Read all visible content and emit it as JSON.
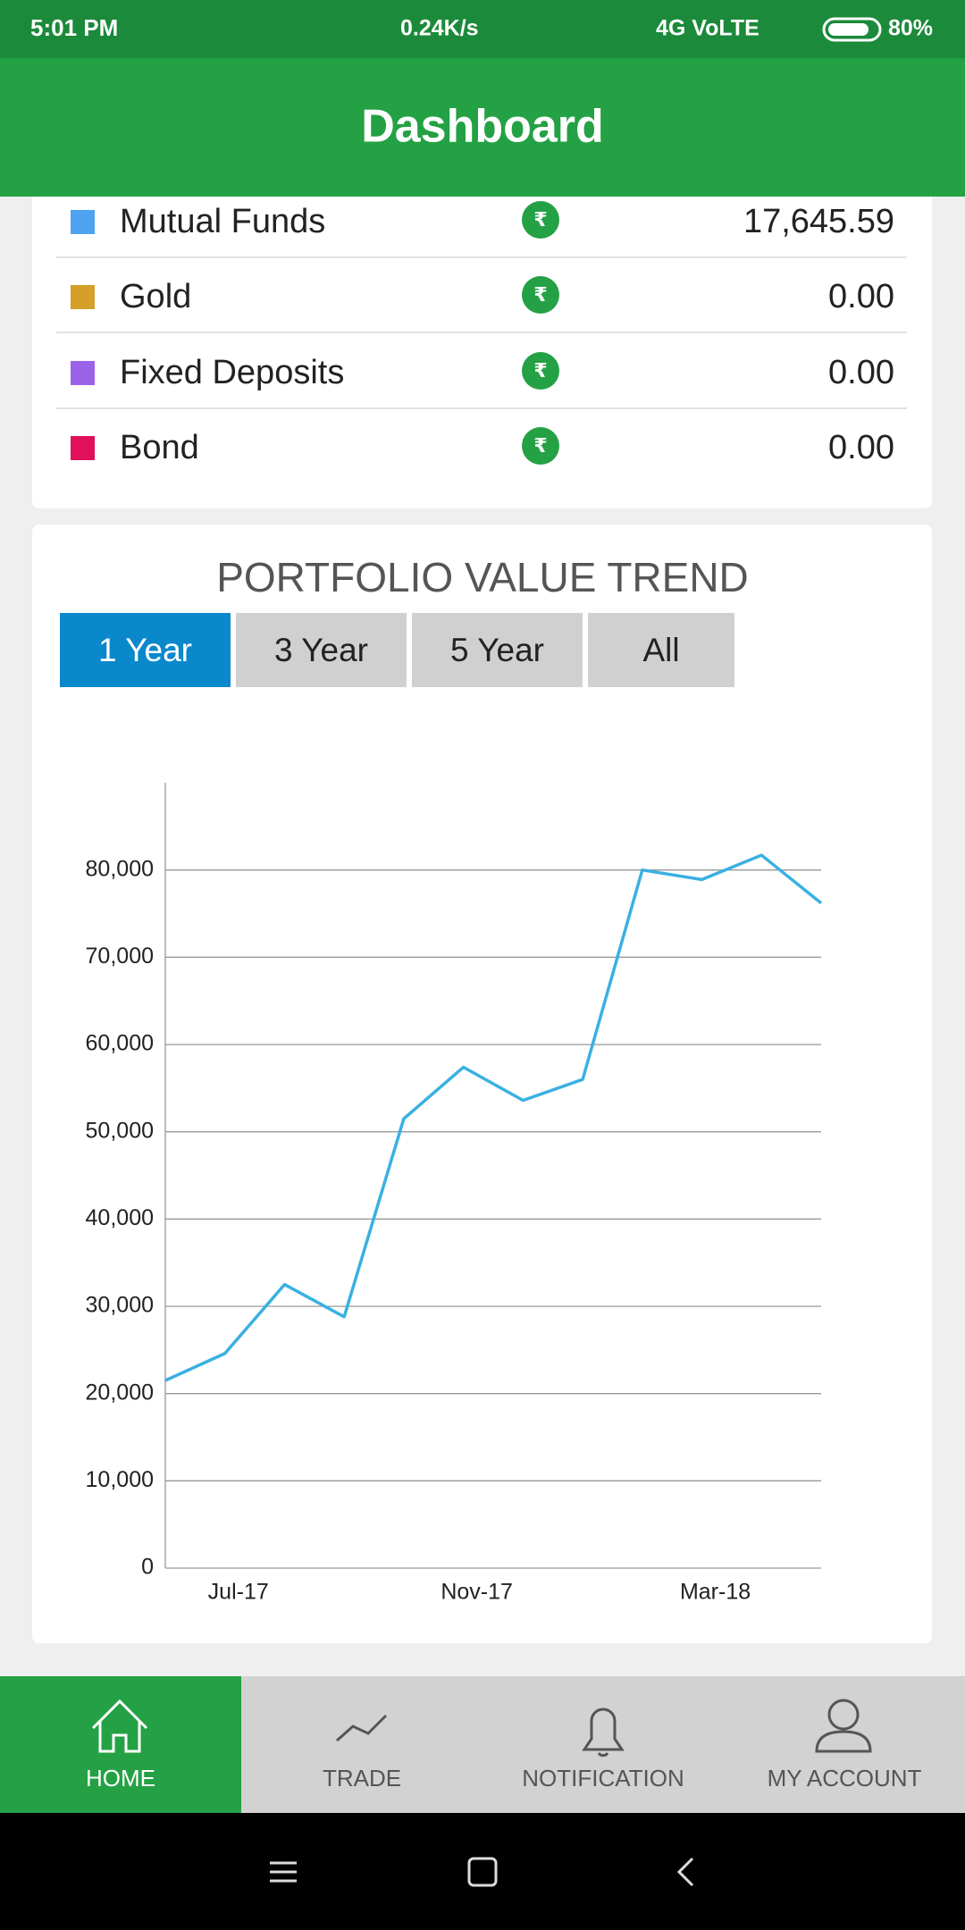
{
  "status_bar": {
    "time": "5:01 PM",
    "speed": "0.24K/s",
    "network": "4G VoLTE",
    "battery": "80%"
  },
  "header": {
    "title": "Dashboard"
  },
  "assets": [
    {
      "name": "Mutual Funds",
      "color": "#4da3f0",
      "currency": "₹",
      "value": "17,645.59"
    },
    {
      "name": "Gold",
      "color": "#d4a02a",
      "currency": "₹",
      "value": "0.00"
    },
    {
      "name": "Fixed Deposits",
      "color": "#9b62e8",
      "currency": "₹",
      "value": "0.00"
    },
    {
      "name": "Bond",
      "color": "#e0105a",
      "currency": "₹",
      "value": "0.00"
    }
  ],
  "range_tabs": [
    {
      "label": "1 Year",
      "active": true
    },
    {
      "label": "3 Year",
      "active": false
    },
    {
      "label": "5 Year",
      "active": false
    },
    {
      "label": "All",
      "active": false
    }
  ],
  "chart_data": {
    "type": "line",
    "title": "PORTFOLIO VALUE TREND",
    "categories": [
      null,
      "Jul-17",
      null,
      null,
      null,
      "Nov-17",
      null,
      null,
      null,
      "Mar-18",
      null,
      null
    ],
    "values": [
      21500,
      24600,
      32500,
      28800,
      51500,
      57400,
      53600,
      56000,
      80000,
      78900,
      81700,
      76200
    ],
    "color": "#3ab0e2",
    "ylim": [
      0,
      90000
    ],
    "yticks": [
      0,
      {
        "value": 10000,
        "label": "10,000"
      },
      {
        "value": 20000,
        "label": "20,000"
      },
      {
        "value": 30000,
        "label": "30,000"
      },
      {
        "value": 40000,
        "label": "40,000"
      },
      {
        "value": 50000,
        "label": "50,000"
      },
      {
        "value": 60000,
        "label": "60,000"
      },
      {
        "value": 70000,
        "label": "70,000"
      },
      {
        "value": 80000,
        "label": "80,000"
      }
    ],
    "grid": true
  },
  "bottom_nav": [
    {
      "label": "HOME",
      "active": true
    },
    {
      "label": "TRADE",
      "active": false
    },
    {
      "label": "NOTIFICATION",
      "active": false
    },
    {
      "label": "MY ACCOUNT",
      "active": false
    }
  ]
}
